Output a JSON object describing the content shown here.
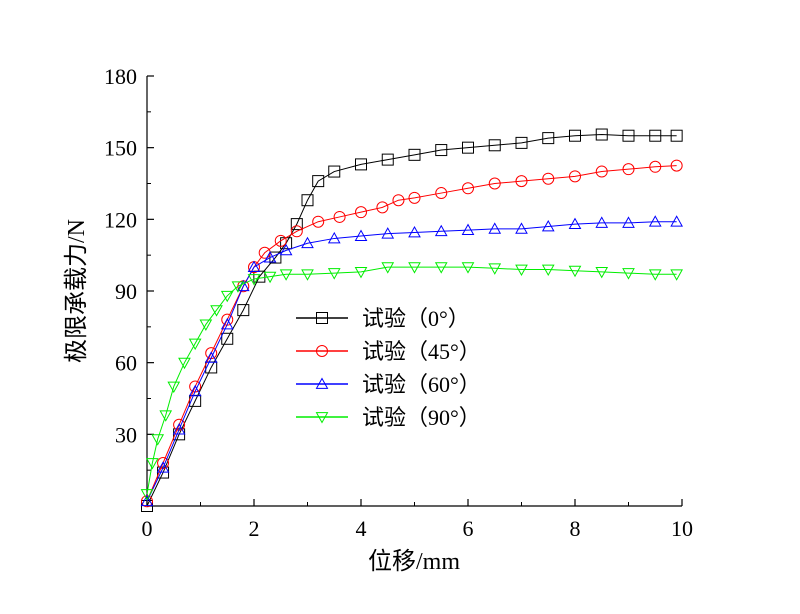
{
  "chart_data": {
    "type": "scatter",
    "title": "",
    "xlabel": "位移/mm",
    "ylabel": "极限承载力/N",
    "xlim": [
      0,
      10
    ],
    "ylim": [
      0,
      180
    ],
    "xticks": [
      0,
      2,
      4,
      6,
      8,
      10
    ],
    "yticks": [
      30,
      60,
      90,
      120,
      150,
      180
    ],
    "xtick_labels": [
      "0",
      "2",
      "4",
      "6",
      "8",
      "10"
    ],
    "ytick_labels": [
      "30",
      "60",
      "90",
      "120",
      "150",
      "180"
    ],
    "grid": false,
    "legend_position": "center",
    "series": [
      {
        "name": "试验（0°）",
        "color": "#000000",
        "marker": "square",
        "points": [
          [
            0,
            0
          ],
          [
            0.3,
            14
          ],
          [
            0.6,
            30
          ],
          [
            0.9,
            44
          ],
          [
            1.2,
            58
          ],
          [
            1.5,
            70
          ],
          [
            1.8,
            82
          ],
          [
            2.1,
            96
          ],
          [
            2.4,
            104
          ],
          [
            2.6,
            110
          ],
          [
            2.8,
            118
          ],
          [
            3.0,
            128
          ],
          [
            3.2,
            136
          ],
          [
            3.5,
            140
          ],
          [
            4.0,
            143
          ],
          [
            4.5,
            145
          ],
          [
            5.0,
            147
          ],
          [
            5.5,
            149
          ],
          [
            6.0,
            150
          ],
          [
            6.5,
            151
          ],
          [
            7.0,
            152
          ],
          [
            7.5,
            154
          ],
          [
            8.0,
            155
          ],
          [
            8.5,
            155.5
          ],
          [
            9.0,
            155
          ],
          [
            9.5,
            155
          ],
          [
            9.9,
            155
          ]
        ]
      },
      {
        "name": "试验（45°）",
        "color": "#ff0000",
        "marker": "circle",
        "points": [
          [
            0,
            2
          ],
          [
            0.3,
            18
          ],
          [
            0.6,
            34
          ],
          [
            0.9,
            50
          ],
          [
            1.2,
            64
          ],
          [
            1.5,
            78
          ],
          [
            1.8,
            92
          ],
          [
            2.0,
            100
          ],
          [
            2.2,
            106
          ],
          [
            2.5,
            111
          ],
          [
            2.8,
            115
          ],
          [
            3.2,
            119
          ],
          [
            3.6,
            121
          ],
          [
            4.0,
            123
          ],
          [
            4.4,
            125
          ],
          [
            4.7,
            128
          ],
          [
            5.0,
            129
          ],
          [
            5.5,
            131
          ],
          [
            6.0,
            133
          ],
          [
            6.5,
            135
          ],
          [
            7.0,
            136
          ],
          [
            7.5,
            137
          ],
          [
            8.0,
            138
          ],
          [
            8.5,
            140
          ],
          [
            9.0,
            141
          ],
          [
            9.5,
            142
          ],
          [
            9.9,
            142.5
          ]
        ]
      },
      {
        "name": "试验（60°）",
        "color": "#0000ff",
        "marker": "triangle-up",
        "points": [
          [
            0,
            2
          ],
          [
            0.3,
            16
          ],
          [
            0.6,
            32
          ],
          [
            0.9,
            48
          ],
          [
            1.2,
            62
          ],
          [
            1.5,
            76
          ],
          [
            1.8,
            92
          ],
          [
            2.0,
            100
          ],
          [
            2.3,
            104
          ],
          [
            2.6,
            107
          ],
          [
            3.0,
            110
          ],
          [
            3.5,
            112
          ],
          [
            4.0,
            113
          ],
          [
            4.5,
            114
          ],
          [
            5.0,
            114.5
          ],
          [
            5.5,
            115
          ],
          [
            6.0,
            115.5
          ],
          [
            6.5,
            116
          ],
          [
            7.0,
            116
          ],
          [
            7.5,
            117
          ],
          [
            8.0,
            118
          ],
          [
            8.5,
            118.5
          ],
          [
            9.0,
            118.5
          ],
          [
            9.5,
            119
          ],
          [
            9.9,
            119
          ]
        ]
      },
      {
        "name": "试验（90°）",
        "color": "#00ee00",
        "marker": "triangle-down",
        "points": [
          [
            0,
            5
          ],
          [
            0.1,
            18
          ],
          [
            0.2,
            28
          ],
          [
            0.35,
            38
          ],
          [
            0.5,
            50
          ],
          [
            0.7,
            60
          ],
          [
            0.9,
            68
          ],
          [
            1.1,
            76
          ],
          [
            1.3,
            82
          ],
          [
            1.5,
            88
          ],
          [
            1.7,
            92
          ],
          [
            2.0,
            95
          ],
          [
            2.3,
            96
          ],
          [
            2.6,
            97
          ],
          [
            3.0,
            97
          ],
          [
            3.5,
            97.5
          ],
          [
            4.0,
            98
          ],
          [
            4.5,
            100
          ],
          [
            5.0,
            100
          ],
          [
            5.5,
            100
          ],
          [
            6.0,
            100
          ],
          [
            6.5,
            99.5
          ],
          [
            7.0,
            99
          ],
          [
            7.5,
            99
          ],
          [
            8.0,
            98.5
          ],
          [
            8.5,
            98
          ],
          [
            9.0,
            97.5
          ],
          [
            9.5,
            97
          ],
          [
            9.9,
            97
          ]
        ]
      }
    ]
  }
}
